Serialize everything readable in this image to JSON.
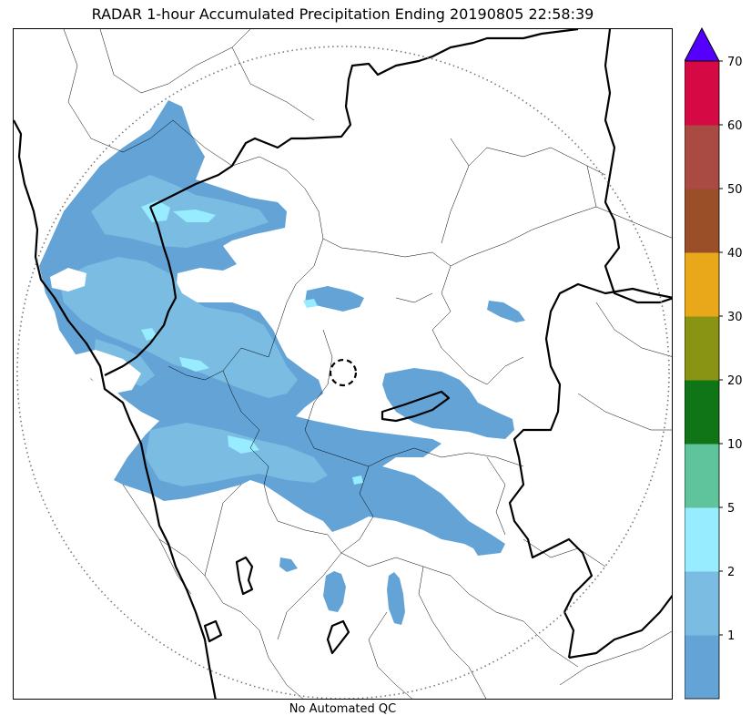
{
  "title": "RADAR 1-hour Accumulated Precipitation Ending 20190805 22:58:39",
  "footer_note": "No Automated QC",
  "colorbar": {
    "extend_max": true,
    "extend_color": "#5500ff",
    "bins": [
      {
        "color": "#64a3d6",
        "label": ""
      },
      {
        "color": "#7abce2",
        "label": "1"
      },
      {
        "color": "#97ecff",
        "label": "2"
      },
      {
        "color": "#5fc49c",
        "label": "5"
      },
      {
        "color": "#0f7517",
        "label": "10"
      },
      {
        "color": "#8a9414",
        "label": "20"
      },
      {
        "color": "#e9a81a",
        "label": "30"
      },
      {
        "color": "#9a4f29",
        "label": "40"
      },
      {
        "color": "#a94a43",
        "label": "50"
      },
      {
        "color": "#d50a44",
        "label": "60"
      }
    ],
    "top_label": "70"
  },
  "map": {
    "range_ring_style": "dotted",
    "radar_site_marker": "dashed-circle",
    "colors": {
      "light_rain": "#64a3d6",
      "moderate_rain": "#7abce2",
      "heavy_rain": "#97ecff",
      "coastline": "#000000",
      "borders": "#000000"
    }
  }
}
